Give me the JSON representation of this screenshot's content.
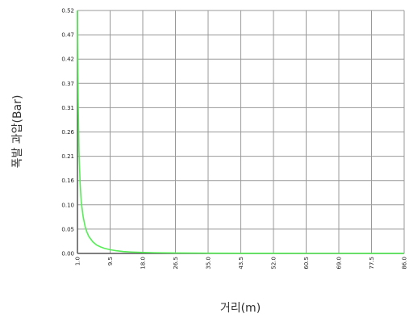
{
  "chart_data": {
    "type": "line",
    "xlabel": "거리(m)",
    "ylabel": "폭발 과압(Bar)",
    "x_ticks": [
      "1.0",
      "9.5",
      "18.0",
      "26.5",
      "35.0",
      "43.5",
      "52.0",
      "60.5",
      "69.0",
      "77.5",
      "86.0"
    ],
    "y_ticks": [
      "0.00",
      "0.05",
      "0.10",
      "0.16",
      "0.21",
      "0.26",
      "0.31",
      "0.37",
      "0.42",
      "0.47",
      "0.52"
    ],
    "xlim": [
      1.0,
      86.0
    ],
    "ylim": [
      0.0,
      0.52
    ],
    "grid": true,
    "colors": {
      "line": "#55ee55",
      "grid": "#999999",
      "axis": "#555555"
    },
    "series": [
      {
        "x": [
          1.0,
          1.2,
          1.4,
          1.7,
          2.0,
          2.5,
          3.0,
          3.5,
          4.0,
          5.0,
          6.0,
          7.0,
          8.0,
          9.5,
          11.0,
          13.0,
          15.0,
          18.0,
          21.0,
          26.5,
          35.0,
          43.5,
          52.0,
          60.5,
          69.0,
          77.5,
          86.0
        ],
        "y": [
          0.52,
          0.32,
          0.22,
          0.15,
          0.11,
          0.078,
          0.058,
          0.045,
          0.036,
          0.025,
          0.018,
          0.014,
          0.011,
          0.008,
          0.006,
          0.004,
          0.003,
          0.002,
          0.0015,
          0.001,
          0.0006,
          0.0004,
          0.0003,
          0.0002,
          0.0002,
          0.0001,
          0.0001
        ]
      }
    ]
  }
}
